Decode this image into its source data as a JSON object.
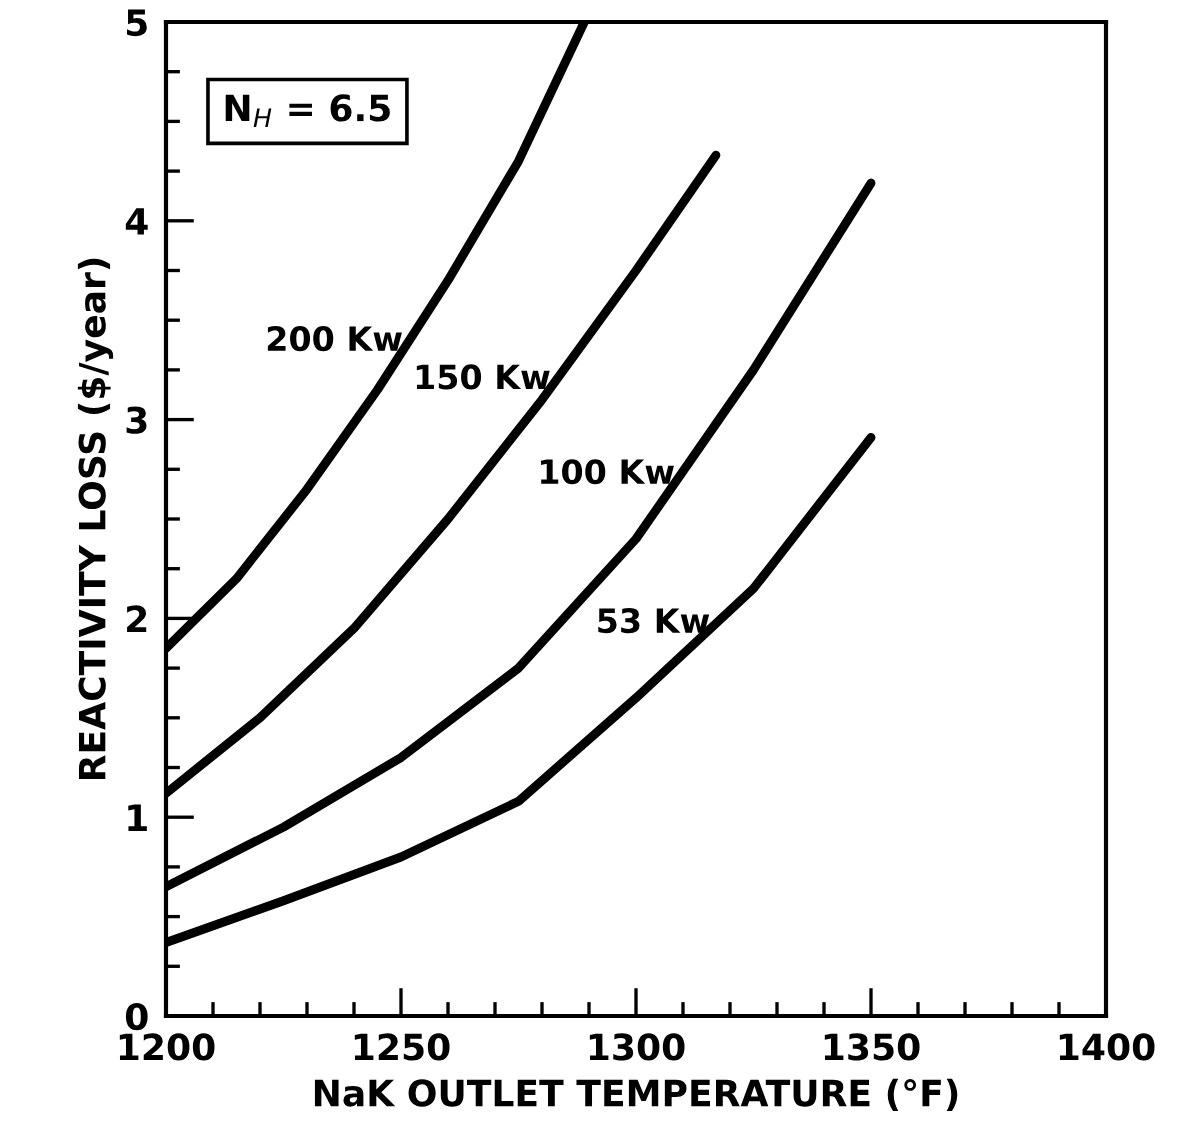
{
  "chart_data": {
    "type": "line",
    "xlabel": "NaK OUTLET TEMPERATURE (°F)",
    "ylabel": "REACTIVITY LOSS ($/year)",
    "xlim": [
      1200,
      1400
    ],
    "ylim": [
      0,
      5
    ],
    "xticks": [
      1200,
      {
        "value": 1210,
        "label": null
      },
      {
        "value": 1220,
        "label": null
      },
      {
        "value": 1230,
        "label": null
      },
      {
        "value": 1240,
        "label": null
      },
      1250,
      {
        "value": 1260,
        "label": null
      },
      {
        "value": 1270,
        "label": null
      },
      {
        "value": 1280,
        "label": null
      },
      {
        "value": 1290,
        "label": null
      },
      1300,
      {
        "value": 1310,
        "label": null
      },
      {
        "value": 1320,
        "label": null
      },
      {
        "value": 1330,
        "label": null
      },
      {
        "value": 1340,
        "label": null
      },
      1350,
      {
        "value": 1360,
        "label": null
      },
      {
        "value": 1370,
        "label": null
      },
      {
        "value": 1380,
        "label": null
      },
      {
        "value": 1390,
        "label": null
      },
      1400
    ],
    "yticks": [
      0,
      {
        "value": 0.25,
        "label": null
      },
      {
        "value": 0.5,
        "label": null
      },
      {
        "value": 0.75,
        "label": null
      },
      1,
      {
        "value": 1.25,
        "label": null
      },
      {
        "value": 1.5,
        "label": null
      },
      {
        "value": 1.75,
        "label": null
      },
      2,
      {
        "value": 2.25,
        "label": null
      },
      {
        "value": 2.5,
        "label": null
      },
      {
        "value": 2.75,
        "label": null
      },
      3,
      {
        "value": 3.25,
        "label": null
      },
      {
        "value": 3.5,
        "label": null
      },
      {
        "value": 3.75,
        "label": null
      },
      4,
      {
        "value": 4.25,
        "label": null
      },
      {
        "value": 4.5,
        "label": null
      },
      {
        "value": 4.75,
        "label": null
      },
      5
    ],
    "grid": false,
    "legend": false,
    "marker": "none",
    "line_style": "solid",
    "series": [
      {
        "name": "200 Kw",
        "color": "#000000",
        "x": [
          1200,
          1215,
          1230,
          1245,
          1260,
          1275,
          1289
        ],
        "values": [
          1.85,
          2.2,
          2.65,
          3.15,
          3.7,
          4.3,
          5.0
        ]
      },
      {
        "name": "150 Kw",
        "color": "#000000",
        "x": [
          1200,
          1220,
          1240,
          1260,
          1280,
          1300,
          1317
        ],
        "values": [
          1.12,
          1.5,
          1.95,
          2.5,
          3.1,
          3.75,
          4.33
        ]
      },
      {
        "name": "100 Kw",
        "color": "#000000",
        "x": [
          1200,
          1225,
          1250,
          1275,
          1300,
          1325,
          1350
        ],
        "values": [
          0.65,
          0.95,
          1.3,
          1.75,
          2.4,
          3.25,
          4.19
        ]
      },
      {
        "name": "53 Kw",
        "color": "#000000",
        "x": [
          1200,
          1225,
          1250,
          1275,
          1300,
          1325,
          1350
        ],
        "values": [
          0.37,
          0.58,
          0.8,
          1.08,
          1.6,
          2.15,
          2.91
        ]
      }
    ],
    "annotations": [
      "N$_{H}$ = 6.5"
    ]
  }
}
